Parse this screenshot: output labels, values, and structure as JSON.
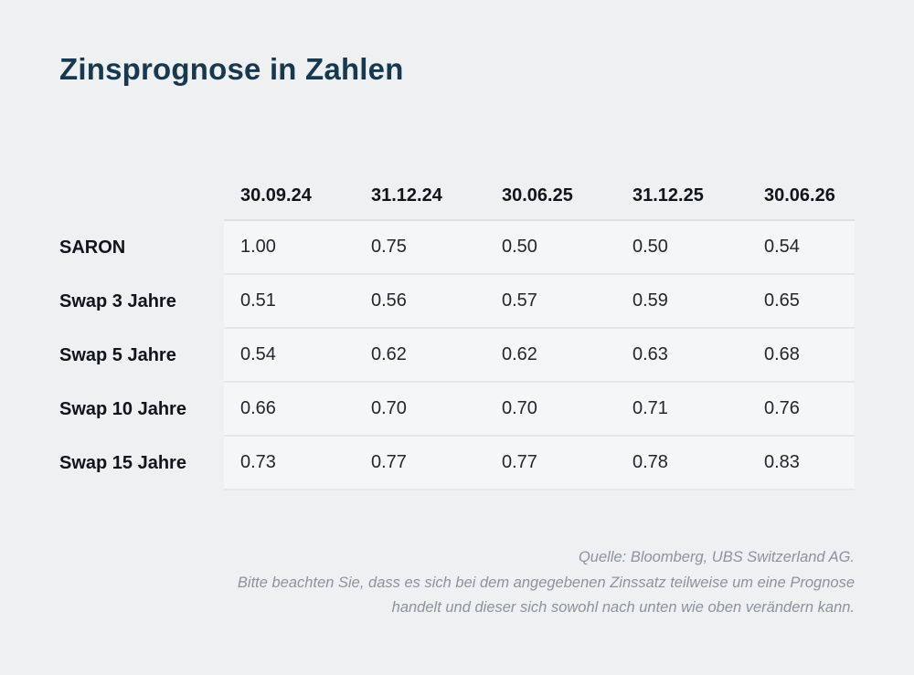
{
  "title": "Zinsprognose in Zahlen",
  "colors": {
    "background": "#eef0f2",
    "title": "#17384e",
    "row_band": "#f5f6f8",
    "divider": "#e4e8ea",
    "footer_text": "#8d9399"
  },
  "chart_data": {
    "type": "table",
    "title": "Zinsprognose in Zahlen",
    "columns": [
      "30.09.24",
      "31.12.24",
      "30.06.25",
      "31.12.25",
      "30.06.26"
    ],
    "rows": [
      {
        "label": "SARON",
        "values": [
          "1.00",
          "0.75",
          "0.50",
          "0.50",
          "0.54"
        ]
      },
      {
        "label": "Swap 3 Jahre",
        "values": [
          "0.51",
          "0.56",
          "0.57",
          "0.59",
          "0.65"
        ]
      },
      {
        "label": "Swap 5 Jahre",
        "values": [
          "0.54",
          "0.62",
          "0.62",
          "0.63",
          "0.68"
        ]
      },
      {
        "label": "Swap 10 Jahre",
        "values": [
          "0.66",
          "0.70",
          "0.70",
          "0.71",
          "0.76"
        ]
      },
      {
        "label": "Swap 15 Jahre",
        "values": [
          "0.73",
          "0.77",
          "0.77",
          "0.78",
          "0.83"
        ]
      }
    ]
  },
  "footer": {
    "source": "Quelle: Bloomberg, UBS Switzerland AG.",
    "disclaimer": "Bitte beachten Sie, dass es sich bei dem angegebenen Zinssatz teilweise um eine Prognose handelt und dieser sich sowohl nach unten wie oben verändern kann."
  }
}
